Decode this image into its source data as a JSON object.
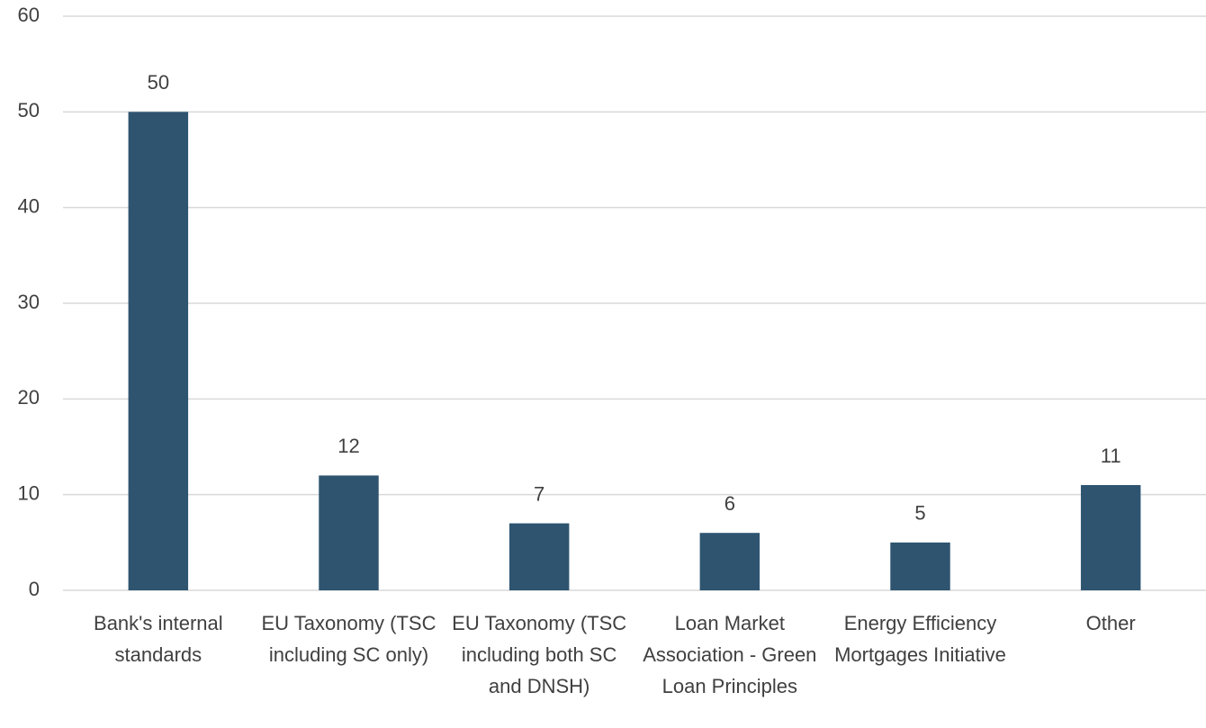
{
  "chart_data": {
    "type": "bar",
    "categories": [
      "Bank's internal standards",
      "EU Taxonomy (TSC including SC only)",
      "EU Taxonomy (TSC including both SC and DNSH)",
      "Loan Market Association - Green Loan Principles",
      "Energy Efficiency Mortgages Initiative",
      "Other"
    ],
    "values": [
      50,
      12,
      7,
      6,
      5,
      11
    ],
    "color": "#2e5470",
    "ylim": [
      0,
      60
    ],
    "yticks": [
      0,
      10,
      20,
      30,
      40,
      50,
      60
    ],
    "grid": true
  }
}
